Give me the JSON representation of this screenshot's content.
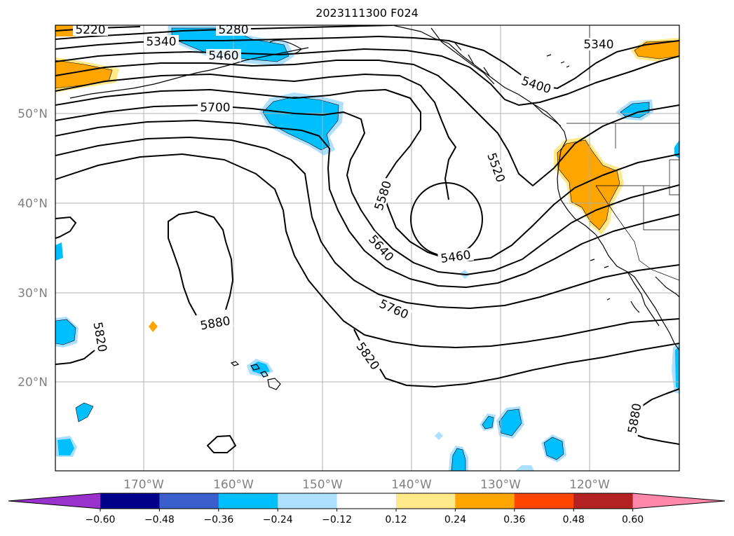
{
  "title": "2023111300 F024",
  "axes": {
    "lat_ticks": [
      "50°N",
      "40°N",
      "30°N",
      "20°N"
    ],
    "lon_ticks": [
      "170°W",
      "160°W",
      "150°W",
      "140°W",
      "130°W",
      "120°W"
    ]
  },
  "contour_labels": [
    "5220",
    "5280",
    "5340",
    "5460",
    "5700",
    "5400",
    "5340",
    "5520",
    "5580",
    "5640",
    "5460",
    "5760",
    "5820",
    "5820",
    "5880",
    "5880"
  ],
  "colorbar": {
    "ticks": [
      "−0.60",
      "−0.48",
      "−0.36",
      "−0.24",
      "−0.12",
      "0.12",
      "0.24",
      "0.36",
      "0.48",
      "0.60"
    ],
    "colors": [
      "#9932CC",
      "#00008B",
      "#3A5FCD",
      "#00BFFF",
      "#ADDFFF",
      "#FFFFFF",
      "#FFE98A",
      "#FFA500",
      "#FF4500",
      "#B22222",
      "#FF88AA"
    ]
  },
  "colors": {
    "cyan": "#00BFFF",
    "light_blue": "#ADDFFF",
    "orange": "#FFA500",
    "yellow": "#FFE98A",
    "grid": "#b0b0b0"
  }
}
